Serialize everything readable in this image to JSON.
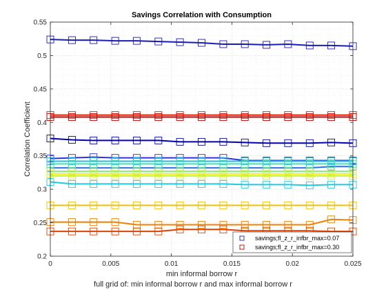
{
  "chart_data": {
    "type": "line",
    "title": "Savings Correlation with Consumption",
    "xlabel": "min informal borrow r",
    "ylabel": "Correlation Coefficient",
    "caption": "full grid of: min informal borrow r and max informal borrow r",
    "xlim": [
      0,
      0.025
    ],
    "ylim": [
      0.2,
      0.55
    ],
    "xticks": [
      0,
      0.005,
      0.01,
      0.015,
      0.02,
      0.025
    ],
    "xtick_labels": [
      "0",
      "0.005",
      "0.01",
      "0.015",
      "0.02",
      "0.025"
    ],
    "yticks": [
      0.2,
      0.25,
      0.3,
      0.35,
      0.4,
      0.45,
      0.5,
      0.55
    ],
    "ytick_labels": [
      "0.2",
      "0.25",
      "0.3",
      "0.35",
      "0.4",
      "0.45",
      "0.5",
      "0.55"
    ],
    "grid": true,
    "marker": "square",
    "legend_position": "bottom-right",
    "x": [
      0,
      0.00179,
      0.00357,
      0.00536,
      0.00714,
      0.00893,
      0.01071,
      0.0125,
      0.01429,
      0.01607,
      0.01786,
      0.01964,
      0.02143,
      0.02321,
      0.025
    ],
    "series": [
      {
        "name": "savings;fl_z_r_infbr_max=0.07",
        "color": "#1a1ab8",
        "values": [
          0.524,
          0.523,
          0.523,
          0.522,
          0.522,
          0.521,
          0.52,
          0.519,
          0.517,
          0.517,
          0.516,
          0.517,
          0.515,
          0.515,
          0.514
        ]
      },
      {
        "color": "#0000b0",
        "values": [
          0.376,
          0.374,
          0.373,
          0.373,
          0.373,
          0.373,
          0.371,
          0.371,
          0.371,
          0.37,
          0.369,
          0.369,
          0.369,
          0.37,
          0.369
        ]
      },
      {
        "color": "#3030e0",
        "values": [
          0.346,
          0.347,
          0.348,
          0.347,
          0.347,
          0.347,
          0.347,
          0.347,
          0.347,
          0.343,
          0.343,
          0.343,
          0.343,
          0.343,
          0.343
        ]
      },
      {
        "color": "#2a70f0",
        "values": [
          0.332,
          0.332,
          0.332,
          0.332,
          0.332,
          0.332,
          0.332,
          0.332,
          0.332,
          0.332,
          0.332,
          0.332,
          0.332,
          0.334,
          0.334
        ]
      },
      {
        "color": "#20b8e8",
        "values": [
          0.342,
          0.342,
          0.342,
          0.342,
          0.342,
          0.342,
          0.342,
          0.342,
          0.342,
          0.342,
          0.342,
          0.342,
          0.342,
          0.342,
          0.342
        ]
      },
      {
        "color": "#20c8e0",
        "values": [
          0.311,
          0.308,
          0.308,
          0.308,
          0.308,
          0.308,
          0.308,
          0.308,
          0.308,
          0.307,
          0.307,
          0.307,
          0.306,
          0.307,
          0.307
        ]
      },
      {
        "color": "#40e0b0",
        "values": [
          0.338,
          0.338,
          0.338,
          0.338,
          0.338,
          0.338,
          0.338,
          0.338,
          0.338,
          0.338,
          0.338,
          0.338,
          0.338,
          0.338,
          0.338
        ]
      },
      {
        "color": "#80f080",
        "values": [
          0.327,
          0.327,
          0.327,
          0.327,
          0.327,
          0.327,
          0.327,
          0.327,
          0.327,
          0.327,
          0.327,
          0.327,
          0.327,
          0.327,
          0.327
        ]
      },
      {
        "color": "#c0f040",
        "values": [
          0.32,
          0.32,
          0.32,
          0.32,
          0.32,
          0.32,
          0.32,
          0.32,
          0.32,
          0.32,
          0.32,
          0.32,
          0.32,
          0.32,
          0.32
        ]
      },
      {
        "color": "#f0f020",
        "values": [
          0.323,
          0.323,
          0.323,
          0.323,
          0.323,
          0.323,
          0.323,
          0.323,
          0.323,
          0.323,
          0.323,
          0.323,
          0.323,
          0.323,
          0.323
        ]
      },
      {
        "color": "#f0c000",
        "values": [
          0.276,
          0.276,
          0.276,
          0.276,
          0.276,
          0.276,
          0.276,
          0.276,
          0.276,
          0.276,
          0.276,
          0.276,
          0.276,
          0.276,
          0.276
        ]
      },
      {
        "color": "#f08000",
        "values": [
          0.251,
          0.251,
          0.251,
          0.251,
          0.247,
          0.247,
          0.247,
          0.247,
          0.247,
          0.247,
          0.247,
          0.247,
          0.247,
          0.255,
          0.254
        ]
      },
      {
        "color": "#e04000",
        "values": [
          0.237,
          0.237,
          0.237,
          0.237,
          0.237,
          0.237,
          0.24,
          0.24,
          0.24,
          0.238,
          0.238,
          0.238,
          0.238,
          0.237,
          0.237
        ]
      },
      {
        "color": "#e02000",
        "values": [
          0.411,
          0.411,
          0.411,
          0.411,
          0.411,
          0.411,
          0.411,
          0.411,
          0.411,
          0.411,
          0.411,
          0.411,
          0.411,
          0.411,
          0.411
        ]
      },
      {
        "name": "savings;fl_z_r_infbr_max=0.30",
        "color": "#c00000",
        "values": [
          0.408,
          0.408,
          0.408,
          0.408,
          0.408,
          0.408,
          0.408,
          0.408,
          0.408,
          0.408,
          0.408,
          0.408,
          0.408,
          0.408,
          0.408
        ]
      }
    ],
    "legend": [
      {
        "label": "savings;fl_z_r_infbr_max=0.07",
        "color": "#1a1ab8"
      },
      {
        "label": "savings;fl_z_r_infbr_max=0.30",
        "color": "#c00000"
      }
    ]
  }
}
